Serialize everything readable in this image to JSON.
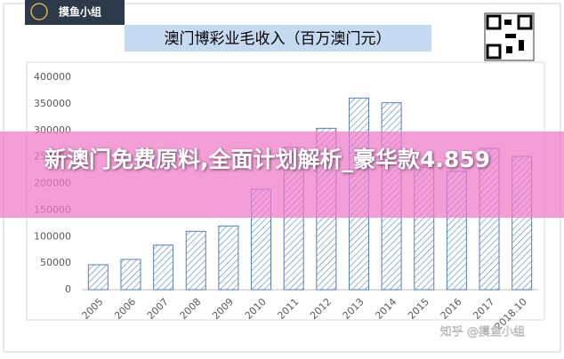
{
  "chart_data": {
    "type": "bar",
    "title": "澳门博彩业毛收入（百万澳门元）",
    "categories": [
      "2005",
      "2006",
      "2007",
      "2008",
      "2009",
      "2010",
      "2011",
      "2012",
      "2013",
      "2014",
      "2015",
      "2016",
      "2017",
      "2018.10"
    ],
    "values": [
      47000,
      57000,
      84000,
      110000,
      120000,
      189000,
      268000,
      304000,
      361000,
      352000,
      231000,
      223000,
      266000,
      251000
    ],
    "color": "#4f81bd",
    "ylim": [
      0,
      400000
    ],
    "yticks": [
      0,
      50000,
      100000,
      150000,
      200000,
      250000,
      300000,
      350000,
      400000
    ],
    "grid": false
  },
  "overlay": {
    "logo_text": "摸鱼小组",
    "banner_text": "新澳门免费原料,全面计划解析_豪华款4.859",
    "watermark": "知乎 @摸鱼小组"
  }
}
